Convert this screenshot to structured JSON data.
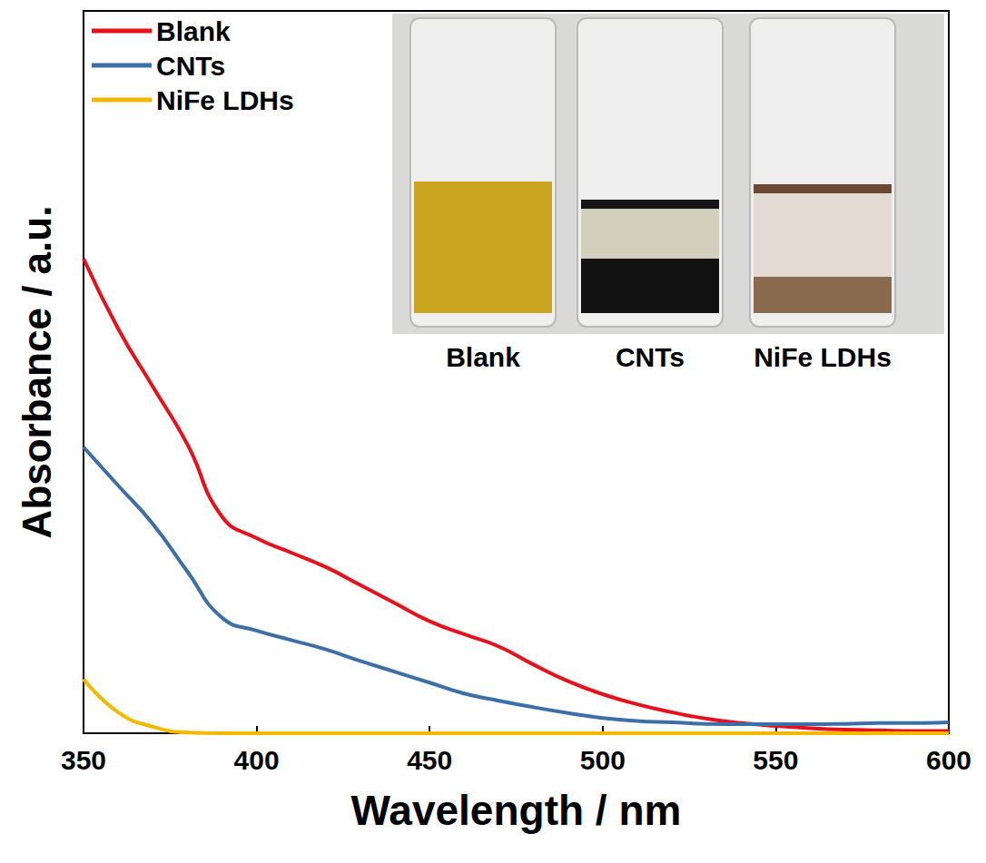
{
  "chart_data": {
    "type": "line",
    "x_label": "Wavelength / nm",
    "y_label": "Absorbance / a.u.",
    "x": [
      350,
      360,
      370,
      380,
      390,
      400,
      410,
      420,
      430,
      440,
      450,
      460,
      470,
      480,
      490,
      500,
      510,
      520,
      530,
      540,
      550,
      560,
      570,
      580,
      590,
      600
    ],
    "series": [
      {
        "name": "Blank",
        "color": "#e8101a",
        "values": [
          0.657,
          0.56,
          0.48,
          0.4,
          0.3,
          0.27,
          0.25,
          0.23,
          0.205,
          0.18,
          0.155,
          0.137,
          0.12,
          0.095,
          0.072,
          0.054,
          0.04,
          0.029,
          0.02,
          0.014,
          0.01,
          0.007,
          0.005,
          0.004,
          0.003,
          0.003
        ]
      },
      {
        "name": "CNTs",
        "color": "#3c6ea8",
        "values": [
          0.396,
          0.343,
          0.29,
          0.224,
          0.16,
          0.142,
          0.129,
          0.116,
          0.1,
          0.085,
          0.07,
          0.055,
          0.045,
          0.036,
          0.028,
          0.021,
          0.017,
          0.015,
          0.013,
          0.0125,
          0.0125,
          0.0125,
          0.013,
          0.014,
          0.014,
          0.015
        ]
      },
      {
        "name": "NiFe LDHs",
        "color": "#f5b800",
        "values": [
          0.075,
          0.029,
          0.009,
          0.001,
          0,
          0,
          0,
          0,
          0,
          0,
          0,
          0,
          0,
          0,
          0,
          0,
          0,
          0,
          0,
          0,
          0,
          0,
          0,
          0,
          0,
          0
        ]
      }
    ],
    "xlim": [
      350,
      600
    ],
    "xticks": [
      350,
      400,
      450,
      500,
      550,
      600
    ],
    "ylim": [
      0,
      1
    ],
    "tick_labels": "x",
    "grid": false,
    "legend": "upper left",
    "annotations": [
      "Blank",
      "CNTs",
      "NiFe LDHs"
    ]
  }
}
